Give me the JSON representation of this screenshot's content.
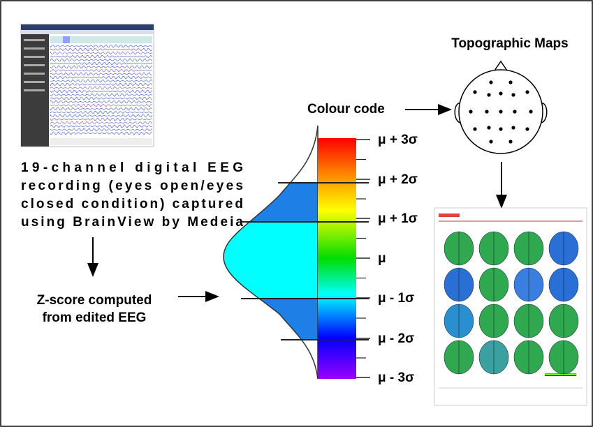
{
  "recording_text": [
    "19-channel digital EEG",
    "recording (eyes open/eyes",
    "closed condition) captured",
    "using BrainView by Medeia"
  ],
  "zscore_text": [
    "Z-score computed",
    "from edited EEG"
  ],
  "colour_code_label": "Colour code",
  "topographic_title": "Topographic Maps",
  "scale_labels": [
    "μ + 3σ",
    "μ + 2σ",
    "μ + 1σ",
    "μ",
    "μ - 1σ",
    "μ - 2σ",
    "μ - 3σ"
  ]
}
